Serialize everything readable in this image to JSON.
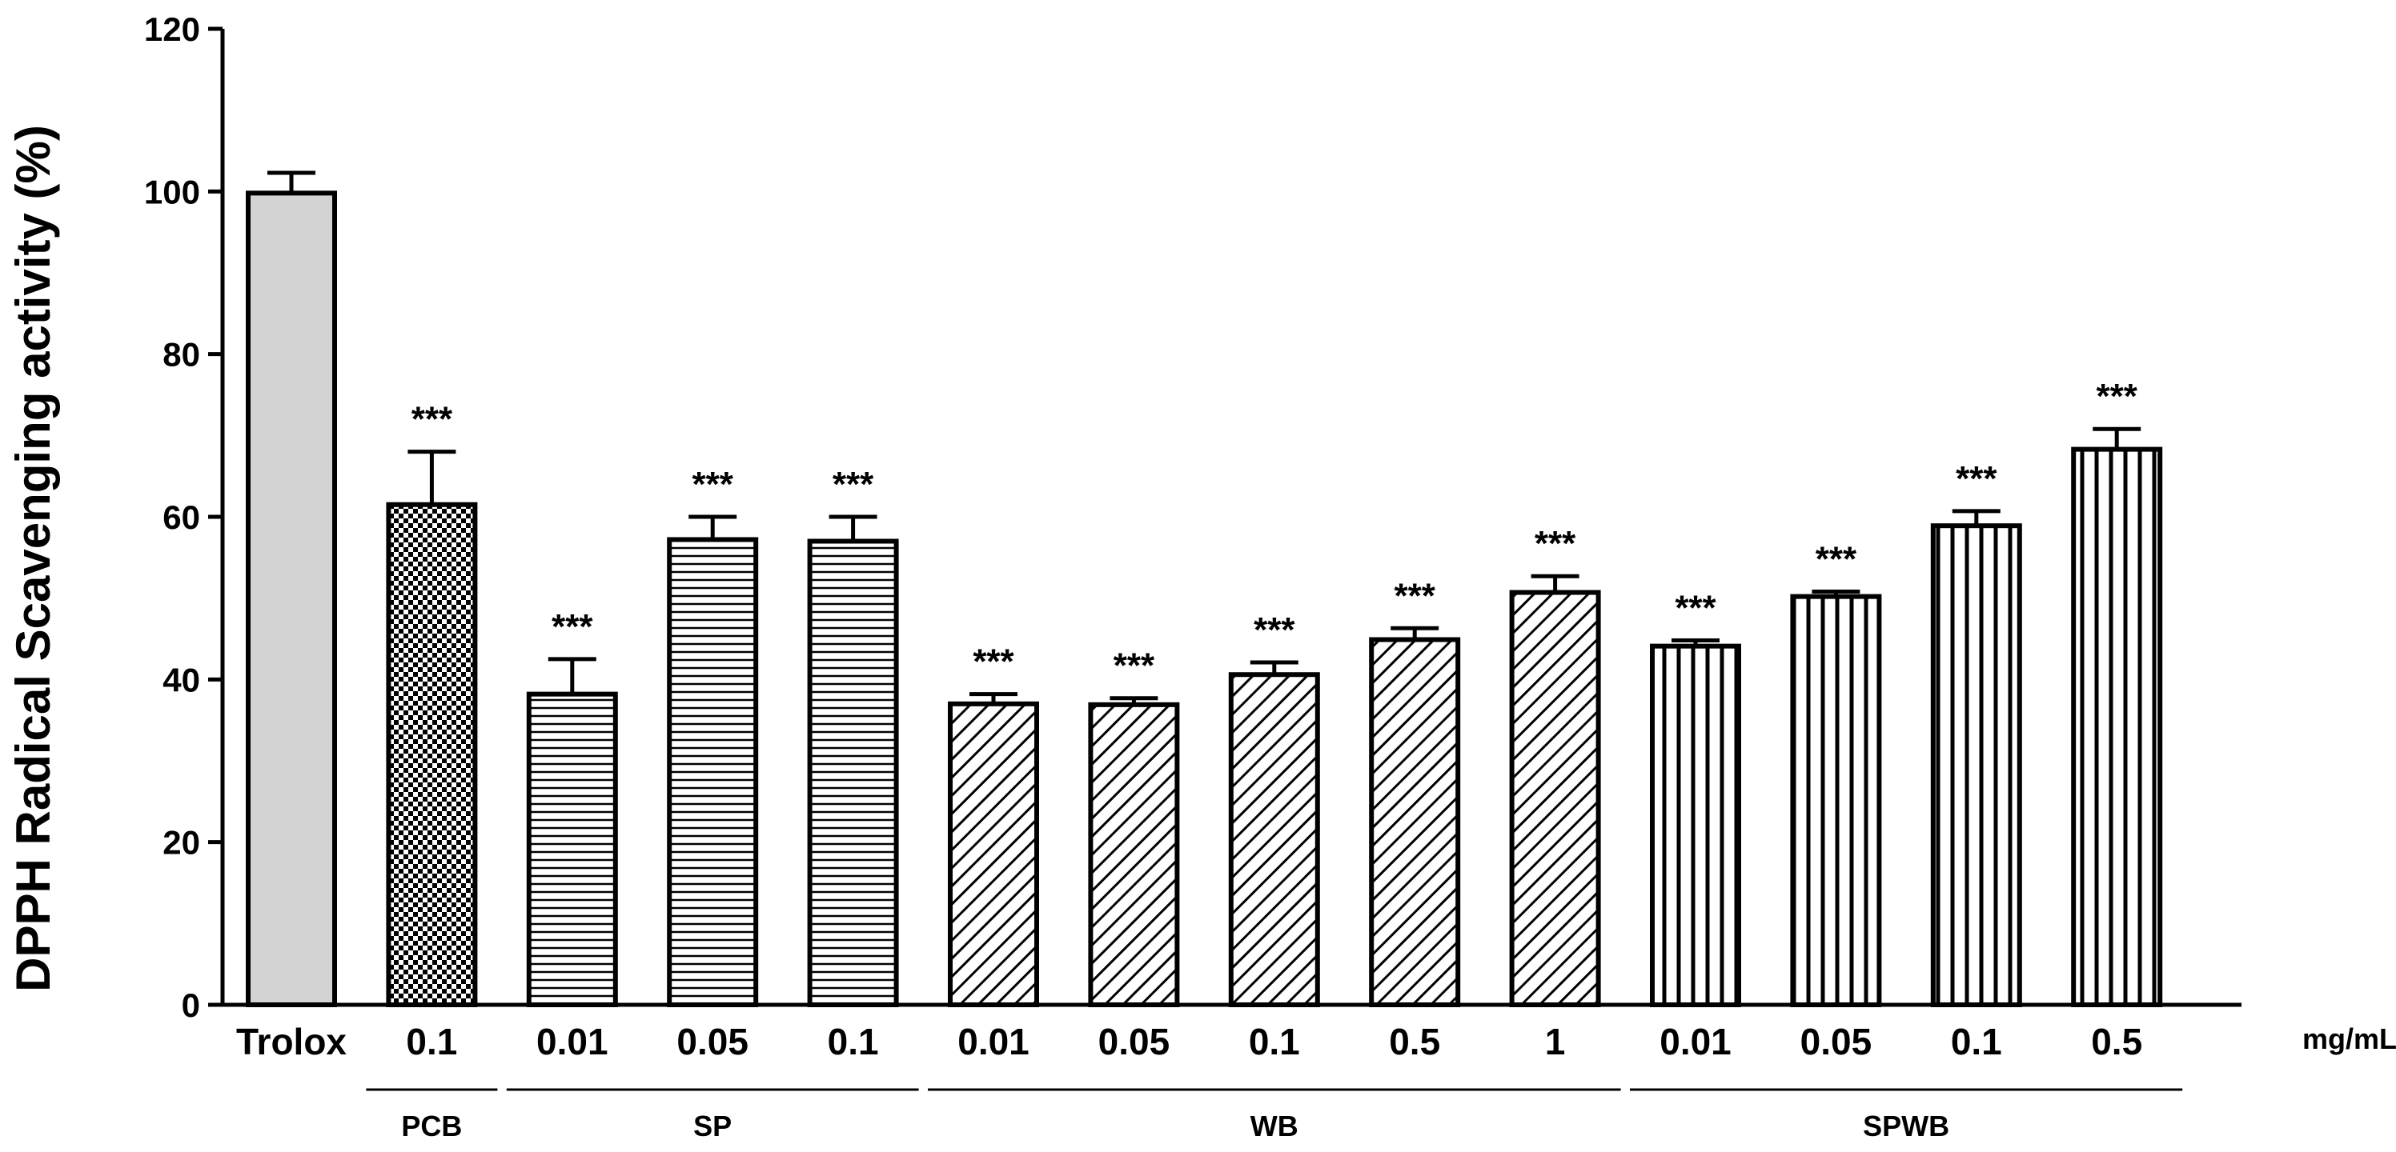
{
  "chart_data": {
    "type": "bar",
    "ylabel": "DPPH Radical Scavenging activity (%)",
    "ylim": [
      0,
      120
    ],
    "yticks": [
      0,
      20,
      40,
      60,
      80,
      100,
      120
    ],
    "unit_label": "mg/mL",
    "categories": [
      "Trolox",
      "0.1",
      "0.01",
      "0.05",
      "0.1",
      "0.01",
      "0.05",
      "0.1",
      "0.5",
      "1",
      "0.01",
      "0.05",
      "0.1",
      "0.5"
    ],
    "values": [
      99.8,
      61.5,
      38.2,
      57.2,
      57.0,
      37.0,
      36.9,
      40.6,
      44.9,
      50.7,
      44.1,
      50.2,
      58.9,
      68.3
    ],
    "errors": [
      2.5,
      6.5,
      4.3,
      2.8,
      3.0,
      1.2,
      0.8,
      1.5,
      1.4,
      2.0,
      0.7,
      0.6,
      1.8,
      2.5
    ],
    "significance": [
      "",
      "***",
      "***",
      "***",
      "***",
      "***",
      "***",
      "***",
      "***",
      "***",
      "***",
      "***",
      "***",
      "***"
    ],
    "patterns": [
      "solid-gray",
      "checker",
      "horizontal",
      "horizontal",
      "horizontal",
      "diagonal",
      "diagonal",
      "diagonal",
      "diagonal",
      "diagonal",
      "vertical",
      "vertical",
      "vertical",
      "vertical"
    ],
    "groups": [
      {
        "label": "PCB",
        "start": 1,
        "end": 1
      },
      {
        "label": "SP",
        "start": 2,
        "end": 4
      },
      {
        "label": "WB",
        "start": 5,
        "end": 9
      },
      {
        "label": "SPWB",
        "start": 10,
        "end": 13
      }
    ],
    "colors": {
      "trolox_fill": "#d3d3d3",
      "stroke": "#000000",
      "background": "#ffffff"
    }
  }
}
